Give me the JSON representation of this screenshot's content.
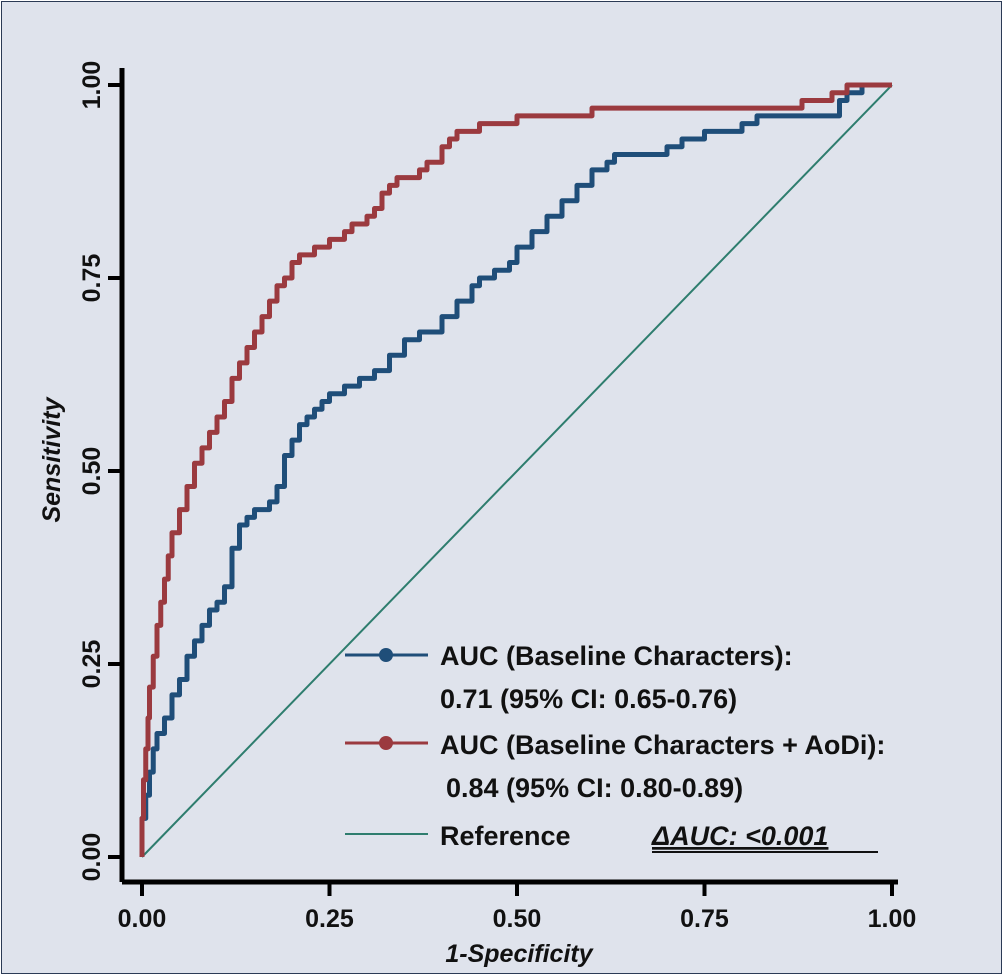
{
  "chart_data": {
    "type": "line",
    "title": "",
    "xlabel": "1-Specificity",
    "ylabel": "Sensitivity",
    "xlim": [
      0,
      1
    ],
    "ylim": [
      0,
      1
    ],
    "xticks": [
      "0.00",
      "0.25",
      "0.50",
      "0.75",
      "1.00"
    ],
    "yticks": [
      "0.00",
      "0.25",
      "0.50",
      "0.75",
      "1.00"
    ],
    "grid": false,
    "legend_position": "bottom-right",
    "series": [
      {
        "label_line1": "AUC (Baseline Characters):",
        "label_line2": "0.71 (95% CI: 0.65-0.76)",
        "color": "#1f4e79",
        "marker": "circle",
        "x": [
          0,
          0.005,
          0.01,
          0.015,
          0.02,
          0.03,
          0.04,
          0.05,
          0.06,
          0.07,
          0.08,
          0.09,
          0.1,
          0.11,
          0.12,
          0.13,
          0.14,
          0.15,
          0.16,
          0.17,
          0.18,
          0.19,
          0.2,
          0.21,
          0.22,
          0.23,
          0.24,
          0.25,
          0.27,
          0.29,
          0.31,
          0.33,
          0.35,
          0.37,
          0.38,
          0.4,
          0.42,
          0.44,
          0.45,
          0.47,
          0.49,
          0.5,
          0.52,
          0.54,
          0.56,
          0.58,
          0.6,
          0.62,
          0.63,
          0.65,
          0.7,
          0.72,
          0.75,
          0.8,
          0.82,
          0.85,
          0.93,
          0.94,
          0.96,
          1.0
        ],
        "y": [
          0,
          0.05,
          0.08,
          0.11,
          0.14,
          0.16,
          0.18,
          0.21,
          0.23,
          0.26,
          0.28,
          0.3,
          0.32,
          0.33,
          0.35,
          0.4,
          0.43,
          0.44,
          0.45,
          0.45,
          0.46,
          0.48,
          0.52,
          0.54,
          0.56,
          0.57,
          0.58,
          0.59,
          0.6,
          0.61,
          0.62,
          0.63,
          0.65,
          0.67,
          0.68,
          0.68,
          0.7,
          0.72,
          0.74,
          0.75,
          0.76,
          0.77,
          0.79,
          0.81,
          0.83,
          0.85,
          0.87,
          0.89,
          0.9,
          0.91,
          0.91,
          0.92,
          0.93,
          0.94,
          0.95,
          0.96,
          0.96,
          0.98,
          0.99,
          1.0
        ]
      },
      {
        "label_line1": "AUC (Baseline Characters + AoDi):",
        "label_line2": "0.84 (95% CI: 0.80-0.89)",
        "color": "#9b3a3f",
        "marker": "circle",
        "x": [
          0,
          0.002,
          0.005,
          0.008,
          0.01,
          0.015,
          0.02,
          0.025,
          0.03,
          0.035,
          0.04,
          0.05,
          0.06,
          0.07,
          0.08,
          0.09,
          0.1,
          0.11,
          0.12,
          0.13,
          0.14,
          0.15,
          0.16,
          0.17,
          0.18,
          0.19,
          0.2,
          0.21,
          0.22,
          0.23,
          0.25,
          0.27,
          0.28,
          0.3,
          0.31,
          0.32,
          0.33,
          0.34,
          0.35,
          0.37,
          0.38,
          0.4,
          0.41,
          0.42,
          0.45,
          0.5,
          0.52,
          0.6,
          0.7,
          0.8,
          0.88,
          0.92,
          0.94,
          0.96,
          1.0
        ],
        "y": [
          0,
          0.05,
          0.1,
          0.14,
          0.18,
          0.22,
          0.26,
          0.3,
          0.33,
          0.36,
          0.39,
          0.42,
          0.45,
          0.48,
          0.51,
          0.53,
          0.55,
          0.57,
          0.59,
          0.62,
          0.64,
          0.66,
          0.68,
          0.7,
          0.72,
          0.74,
          0.75,
          0.77,
          0.78,
          0.78,
          0.79,
          0.8,
          0.81,
          0.82,
          0.83,
          0.84,
          0.86,
          0.87,
          0.88,
          0.88,
          0.89,
          0.9,
          0.92,
          0.93,
          0.94,
          0.95,
          0.96,
          0.96,
          0.97,
          0.97,
          0.97,
          0.98,
          0.99,
          1.0,
          1.0
        ]
      },
      {
        "label_line1": "Reference",
        "color": "#2e7d6e",
        "marker": "none",
        "x": [
          0,
          1
        ],
        "y": [
          0,
          1
        ]
      }
    ],
    "annotation": "ΔAUC: <0.001"
  }
}
